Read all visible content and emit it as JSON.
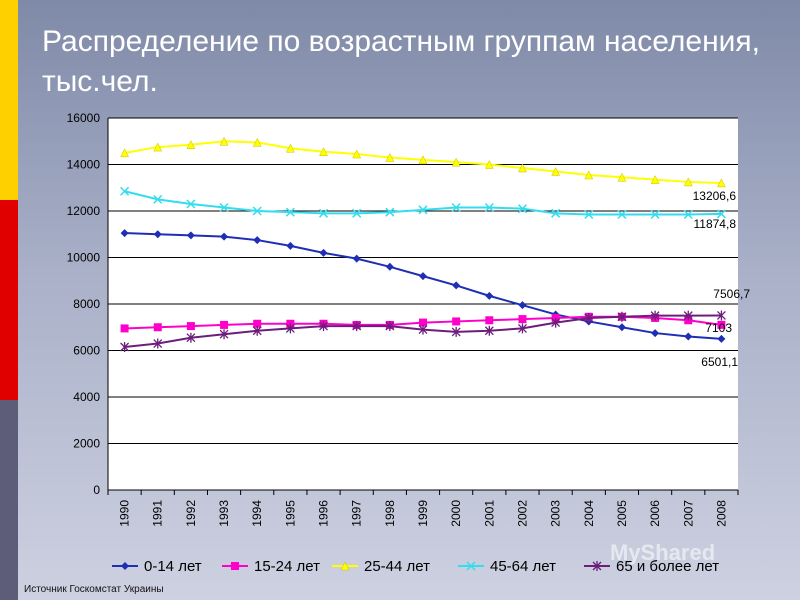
{
  "title": "Распределение по возрастным группам населения, тыс.чел.",
  "source": "Источник Госкомстат Украины",
  "watermark": "MyShared",
  "chart_data": {
    "type": "line",
    "x": [
      "1990",
      "1991",
      "1992",
      "1993",
      "1994",
      "1995",
      "1996",
      "1997",
      "1998",
      "1999",
      "2000",
      "2001",
      "2002",
      "2003",
      "2004",
      "2005",
      "2006",
      "2007",
      "2008"
    ],
    "ylim": [
      0,
      16000
    ],
    "yticks": [
      "0",
      "2000",
      "4000",
      "6000",
      "8000",
      "10000",
      "12000",
      "14000",
      "16000"
    ],
    "grid": true,
    "legend_position": "bottom",
    "series": [
      {
        "name": "0-14 лет",
        "color": "#1f2fb5",
        "marker": "diamond",
        "values": [
          11050,
          11000,
          10950,
          10900,
          10750,
          10500,
          10200,
          9950,
          9600,
          9200,
          8800,
          8350,
          7950,
          7550,
          7250,
          7000,
          6750,
          6600,
          6501.1
        ]
      },
      {
        "name": "15-24 лет",
        "color": "#ff00cc",
        "marker": "square",
        "values": [
          6950,
          7000,
          7050,
          7100,
          7150,
          7150,
          7150,
          7100,
          7100,
          7200,
          7250,
          7300,
          7350,
          7400,
          7450,
          7450,
          7400,
          7300,
          7103
        ]
      },
      {
        "name": "25-44 лет",
        "color": "#ffff00",
        "marker": "triangle",
        "values": [
          14500,
          14750,
          14850,
          15000,
          14950,
          14700,
          14550,
          14450,
          14300,
          14200,
          14100,
          14000,
          13850,
          13700,
          13550,
          13450,
          13350,
          13250,
          13206.6
        ]
      },
      {
        "name": "45-64 лет",
        "color": "#33ddee",
        "marker": "x",
        "values": [
          12850,
          12500,
          12300,
          12150,
          12000,
          11950,
          11900,
          11900,
          11950,
          12050,
          12150,
          12150,
          12100,
          11900,
          11850,
          11850,
          11850,
          11850,
          11874.8
        ]
      },
      {
        "name": "65 и более лет",
        "color": "#6b1f7a",
        "marker": "star",
        "values": [
          6150,
          6300,
          6550,
          6700,
          6850,
          6950,
          7050,
          7050,
          7050,
          6900,
          6800,
          6850,
          6950,
          7200,
          7400,
          7450,
          7500,
          7500,
          7506.7
        ]
      }
    ],
    "annotations": [
      "13206,6",
      "11874,8",
      "7506,7",
      "7103",
      "6501,1"
    ]
  }
}
